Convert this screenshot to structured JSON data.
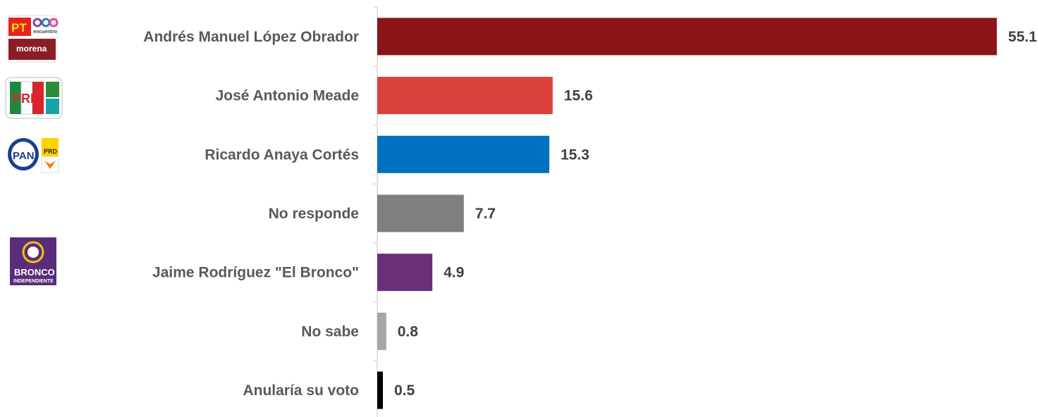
{
  "chart_data": {
    "type": "bar",
    "orientation": "horizontal",
    "categories": [
      "Andrés Manuel López Obrador",
      "José Antonio Meade",
      "Ricardo Anaya Cortés",
      "No responde",
      "Jaime Rodríguez \"El Bronco\"",
      "No sabe",
      "Anularía su voto"
    ],
    "values": [
      55.1,
      15.6,
      15.3,
      7.7,
      4.9,
      0.8,
      0.5
    ],
    "colors": [
      "#8b1416",
      "#db423b",
      "#0070c0",
      "#7f7f7f",
      "#6a2f78",
      "#a6a6a6",
      "#000000"
    ],
    "title": "",
    "xlabel": "",
    "ylabel": "",
    "xlim": [
      0,
      56
    ],
    "grid": false,
    "legend": "none"
  },
  "logos": {
    "amlo": {
      "party_1": "PT",
      "party_2": "encuentro",
      "party_3": "morena"
    },
    "meade": {
      "party_1": "PRI"
    },
    "anaya": {
      "party_1": "PAN",
      "party_2": "PRD"
    },
    "bronco": {
      "name": "BRONCO",
      "sub": "INDEPENDIENTE"
    }
  }
}
